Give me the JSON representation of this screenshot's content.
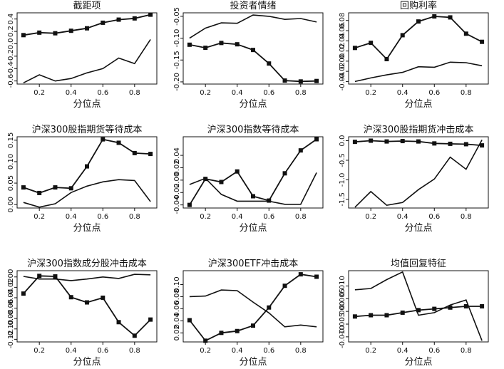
{
  "xlabel": "分位点",
  "x": [
    0.1,
    0.2,
    0.3,
    0.4,
    0.5,
    0.6,
    0.7,
    0.8,
    0.9
  ],
  "xticks": [
    0.2,
    0.4,
    0.6,
    0.8
  ],
  "chart_data": [
    {
      "type": "line",
      "title": "截距项",
      "xlabel": "分位点",
      "ylabel": "",
      "ylim": [
        -0.65,
        0.5
      ],
      "yticks": [
        -0.6,
        -0.4,
        -0.2,
        0.0,
        0.2,
        0.4
      ],
      "ytick_labels": [
        "-0.6",
        "-0.4",
        "-0.2",
        "0.0",
        "0.2",
        "0.4"
      ],
      "series": [
        {
          "name": "square-marker",
          "markers": true,
          "x": [
            0.1,
            0.2,
            0.3,
            0.4,
            0.5,
            0.6,
            0.7,
            0.8,
            0.9
          ],
          "values": [
            0.14,
            0.18,
            0.17,
            0.21,
            0.25,
            0.34,
            0.39,
            0.41,
            0.47
          ]
        },
        {
          "name": "plain",
          "markers": false,
          "x": [
            0.1,
            0.2,
            0.3,
            0.4,
            0.5,
            0.6,
            0.7,
            0.8,
            0.9
          ],
          "values": [
            -0.63,
            -0.5,
            -0.6,
            -0.56,
            -0.47,
            -0.4,
            -0.23,
            -0.32,
            0.07
          ]
        }
      ]
    },
    {
      "type": "line",
      "title": "投资者情绪",
      "xlabel": "分位点",
      "ylabel": "",
      "ylim": [
        -0.205,
        -0.042
      ],
      "yticks": [
        -0.2,
        -0.15,
        -0.1,
        -0.05
      ],
      "ytick_labels": [
        "-0.20",
        "-0.15",
        "-0.10",
        "-0.05"
      ],
      "series": [
        {
          "name": "square-marker",
          "markers": true,
          "x": [
            0.1,
            0.2,
            0.3,
            0.4,
            0.5,
            0.6,
            0.7,
            0.8,
            0.9
          ],
          "values": [
            -0.115,
            -0.122,
            -0.111,
            -0.114,
            -0.127,
            -0.158,
            -0.197,
            -0.199,
            -0.198
          ]
        },
        {
          "name": "plain",
          "markers": false,
          "x": [
            0.1,
            0.2,
            0.3,
            0.4,
            0.5,
            0.6,
            0.7,
            0.8,
            0.9
          ],
          "values": [
            -0.1,
            -0.077,
            -0.065,
            -0.066,
            -0.047,
            -0.05,
            -0.057,
            -0.055,
            -0.063
          ]
        }
      ]
    },
    {
      "type": "line",
      "title": "回购利率",
      "xlabel": "分位点",
      "ylabel": "",
      "ylim": [
        -0.045,
        0.095
      ],
      "yticks": [
        -0.04,
        -0.02,
        0.0,
        0.02,
        0.04,
        0.06,
        0.08
      ],
      "ytick_labels": [
        "-0.04",
        "-0.02",
        "0.00",
        "0.02",
        "0.04",
        "0.06",
        "0.08"
      ],
      "series": [
        {
          "name": "square-marker",
          "markers": true,
          "x": [
            0.1,
            0.2,
            0.3,
            0.4,
            0.5,
            0.6,
            0.7,
            0.8,
            0.9
          ],
          "values": [
            0.026,
            0.036,
            0.004,
            0.051,
            0.078,
            0.088,
            0.086,
            0.054,
            0.038
          ]
        },
        {
          "name": "plain",
          "markers": false,
          "x": [
            0.1,
            0.2,
            0.3,
            0.4,
            0.5,
            0.6,
            0.7,
            0.8,
            0.9
          ],
          "values": [
            -0.04,
            -0.033,
            -0.027,
            -0.022,
            -0.011,
            -0.012,
            -0.002,
            -0.003,
            -0.009
          ]
        }
      ]
    },
    {
      "type": "line",
      "title": "沪深300股指期货等待成本",
      "xlabel": "分位点",
      "ylabel": "",
      "ylim": [
        -0.008,
        0.158
      ],
      "yticks": [
        0.0,
        0.05,
        0.1,
        0.15
      ],
      "ytick_labels": [
        "0.00",
        "0.05",
        "0.10",
        "0.15"
      ],
      "series": [
        {
          "name": "square-marker",
          "markers": true,
          "x": [
            0.1,
            0.2,
            0.3,
            0.4,
            0.5,
            0.6,
            0.7,
            0.8,
            0.9
          ],
          "values": [
            0.04,
            0.027,
            0.04,
            0.038,
            0.089,
            0.152,
            0.144,
            0.12,
            0.118
          ]
        },
        {
          "name": "plain",
          "markers": false,
          "x": [
            0.1,
            0.2,
            0.3,
            0.4,
            0.5,
            0.6,
            0.7,
            0.8,
            0.9
          ],
          "values": [
            0.005,
            -0.006,
            0.002,
            0.028,
            0.043,
            0.053,
            0.058,
            0.056,
            0.007
          ]
        }
      ]
    },
    {
      "type": "line",
      "title": "沪深300指数等待成本",
      "xlabel": "分位点",
      "ylabel": "",
      "ylim": [
        -0.045,
        0.07
      ],
      "yticks": [
        -0.04,
        -0.02,
        0.0,
        0.02,
        0.04
      ],
      "ytick_labels": [
        "-0.04",
        "-0.02",
        "0.00",
        "0.02",
        "0.04"
      ],
      "series": [
        {
          "name": "square-marker",
          "markers": true,
          "x": [
            0.1,
            0.2,
            0.3,
            0.4,
            0.5,
            0.6,
            0.7,
            0.8,
            0.9
          ],
          "values": [
            -0.04,
            0.002,
            -0.003,
            0.014,
            -0.026,
            -0.033,
            0.011,
            0.048,
            0.066
          ]
        },
        {
          "name": "plain",
          "markers": false,
          "x": [
            0.1,
            0.2,
            0.3,
            0.4,
            0.5,
            0.6,
            0.7,
            0.8,
            0.9
          ],
          "values": [
            -0.007,
            0.003,
            -0.023,
            -0.034,
            -0.034,
            -0.034,
            -0.039,
            -0.039,
            0.012
          ]
        }
      ]
    },
    {
      "type": "line",
      "title": "沪深300股指期货冲击成本",
      "xlabel": "分位点",
      "ylabel": "",
      "ylim": [
        -1.72,
        0.1
      ],
      "yticks": [
        -1.5,
        -1.0,
        -0.5,
        0.0
      ],
      "ytick_labels": [
        "-1.5",
        "-1.0",
        "-0.5",
        "0.0"
      ],
      "series": [
        {
          "name": "square-marker",
          "markers": true,
          "x": [
            0.1,
            0.2,
            0.3,
            0.4,
            0.5,
            0.6,
            0.7,
            0.8,
            0.9
          ],
          "values": [
            -0.03,
            0.0,
            -0.02,
            -0.01,
            -0.02,
            -0.07,
            -0.08,
            -0.09,
            -0.12
          ]
        },
        {
          "name": "plain",
          "markers": false,
          "x": [
            0.1,
            0.2,
            0.3,
            0.4,
            0.5,
            0.6,
            0.7,
            0.8,
            0.9
          ],
          "values": [
            -1.7,
            -1.3,
            -1.65,
            -1.58,
            -1.25,
            -0.98,
            -0.42,
            -0.73,
            0.02
          ]
        }
      ]
    },
    {
      "type": "line",
      "title": "沪深300指数成分股冲击成本",
      "xlabel": "分位点",
      "ylabel": "",
      "ylim": [
        -0.125,
        0.012
      ],
      "yticks": [
        -0.12,
        -0.1,
        -0.08,
        -0.06,
        -0.04,
        -0.02,
        0.0
      ],
      "ytick_labels": [
        "-0.12",
        "-0.10",
        "-0.08",
        "-0.06",
        "-0.04",
        "-0.02",
        "0.00"
      ],
      "series": [
        {
          "name": "square-marker",
          "markers": true,
          "x": [
            0.1,
            0.2,
            0.3,
            0.4,
            0.5,
            0.6,
            0.7,
            0.8,
            0.9
          ],
          "values": [
            -0.032,
            0.002,
            0.001,
            -0.039,
            -0.049,
            -0.04,
            -0.087,
            -0.113,
            -0.082
          ]
        },
        {
          "name": "plain",
          "markers": false,
          "x": [
            0.1,
            0.2,
            0.3,
            0.4,
            0.5,
            0.6,
            0.7,
            0.8,
            0.9
          ],
          "values": [
            0.001,
            -0.004,
            -0.004,
            -0.007,
            -0.004,
            0.0,
            -0.003,
            0.005,
            0.004
          ]
        }
      ]
    },
    {
      "type": "line",
      "title": "沪深300ETF冲击成本",
      "xlabel": "分位点",
      "ylabel": "",
      "ylim": [
        0.005,
        0.123
      ],
      "yticks": [
        0.02,
        0.04,
        0.06,
        0.08,
        0.1
      ],
      "ytick_labels": [
        "0.02",
        "0.04",
        "0.06",
        "0.08",
        "0.10"
      ],
      "series": [
        {
          "name": "square-marker",
          "markers": true,
          "x": [
            0.1,
            0.2,
            0.3,
            0.4,
            0.5,
            0.6,
            0.7,
            0.8,
            0.9
          ],
          "values": [
            0.041,
            0.007,
            0.02,
            0.023,
            0.032,
            0.062,
            0.098,
            0.117,
            0.113
          ]
        },
        {
          "name": "plain",
          "markers": false,
          "x": [
            0.1,
            0.2,
            0.3,
            0.4,
            0.5,
            0.6,
            0.7,
            0.8,
            0.9
          ],
          "values": [
            0.08,
            0.081,
            0.091,
            0.09,
            0.071,
            0.053,
            0.03,
            0.033,
            0.03
          ]
        }
      ]
    },
    {
      "type": "line",
      "title": "均值回复特征",
      "xlabel": "分位点",
      "ylabel": "",
      "ylim": [
        -0.012,
        0.016
      ],
      "yticks": [
        -0.01,
        -0.005,
        0.0,
        0.005,
        0.01
      ],
      "ytick_labels": [
        "-0.010",
        "-0.005",
        "0.000",
        "0.005",
        "0.010"
      ],
      "series": [
        {
          "name": "square-marker",
          "markers": true,
          "x": [
            0.1,
            0.2,
            0.3,
            0.4,
            0.5,
            0.6,
            0.7,
            0.8,
            0.9
          ],
          "values": [
            -0.002,
            -0.0015,
            -0.0015,
            -0.0005,
            0.0005,
            0.001,
            0.0015,
            0.002,
            0.002
          ]
        },
        {
          "name": "plain",
          "markers": false,
          "x": [
            0.1,
            0.2,
            0.3,
            0.4,
            0.5,
            0.6,
            0.7,
            0.8,
            0.9
          ],
          "values": [
            0.0085,
            0.009,
            0.0125,
            0.0155,
            -0.0015,
            -0.0005,
            0.0025,
            0.0045,
            -0.0115
          ]
        }
      ]
    }
  ]
}
